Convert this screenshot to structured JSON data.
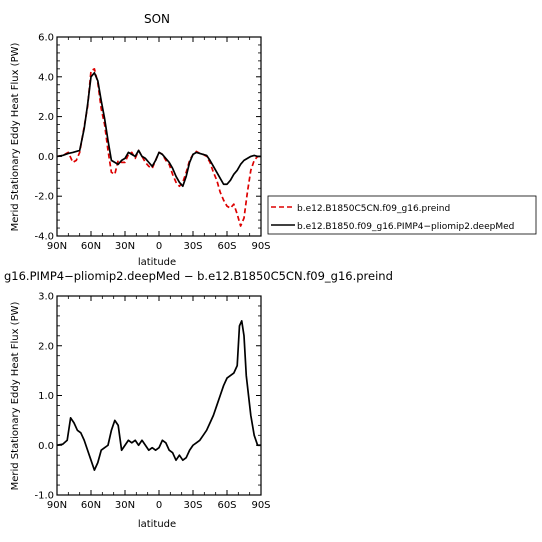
{
  "chart_data": [
    {
      "type": "line",
      "title": "SON",
      "xlabel": "latitude",
      "ylabel": "Merid Stationary Eddy Heat Flux (PW)",
      "x_ticks": [
        "90N",
        "60N",
        "30N",
        "0",
        "30S",
        "60S",
        "90S"
      ],
      "y_ticks": [
        "-4.0",
        "-2.0",
        "0.0",
        "2.0",
        "4.0",
        "6.0"
      ],
      "xlim": [
        90,
        -90
      ],
      "ylim": [
        -4,
        6
      ],
      "x_unit": "latitude (degrees, positive = N)",
      "legend_position": "right",
      "series": [
        {
          "name": "b.e12.B1850C5CN.f09_g16.preind",
          "color": "#dd0000",
          "dash": "dashed",
          "x": [
            90,
            85,
            80,
            76,
            73,
            70,
            66,
            63,
            60,
            57,
            54,
            51,
            48,
            45,
            42,
            39,
            36,
            33,
            30,
            27,
            24,
            21,
            18,
            15,
            12,
            9,
            6,
            3,
            0,
            -3,
            -6,
            -9,
            -12,
            -15,
            -18,
            -21,
            -24,
            -27,
            -30,
            -33,
            -36,
            -39,
            -42,
            -45,
            -48,
            -51,
            -54,
            -57,
            -60,
            -63,
            -66,
            -69,
            -72,
            -75,
            -78,
            -81,
            -84,
            -87,
            -90
          ],
          "y": [
            0.0,
            0.05,
            0.2,
            -0.3,
            -0.2,
            0.2,
            1.5,
            2.5,
            4.3,
            4.4,
            3.7,
            2.4,
            1.6,
            0.3,
            -0.8,
            -0.9,
            -0.2,
            -0.3,
            -0.3,
            0.1,
            0.2,
            -0.1,
            0.3,
            0.0,
            -0.3,
            -0.5,
            -0.6,
            -0.2,
            0.2,
            0.1,
            -0.2,
            -0.4,
            -0.9,
            -1.3,
            -1.5,
            -1.3,
            -0.8,
            -0.2,
            0.1,
            0.25,
            0.15,
            0.1,
            0.0,
            -0.3,
            -0.8,
            -1.2,
            -1.8,
            -2.2,
            -2.5,
            -2.6,
            -2.4,
            -2.9,
            -3.5,
            -3.1,
            -1.8,
            -0.7,
            -0.2,
            0.0,
            0.0
          ]
        },
        {
          "name": "b.e12.B1850.f09_g16.PIMP4-pliomip2.deepMed",
          "color": "#000000",
          "dash": "solid",
          "x": [
            90,
            85,
            80,
            76,
            73,
            70,
            66,
            63,
            60,
            57,
            54,
            51,
            48,
            45,
            42,
            39,
            36,
            33,
            30,
            27,
            24,
            21,
            18,
            15,
            12,
            9,
            6,
            3,
            0,
            -3,
            -6,
            -9,
            -12,
            -15,
            -18,
            -21,
            -24,
            -27,
            -30,
            -33,
            -36,
            -39,
            -42,
            -45,
            -48,
            -51,
            -54,
            -57,
            -60,
            -63,
            -66,
            -69,
            -72,
            -75,
            -78,
            -81,
            -84,
            -87,
            -90
          ],
          "y": [
            0.0,
            0.05,
            0.15,
            0.2,
            0.25,
            0.3,
            1.4,
            2.6,
            4.0,
            4.2,
            3.8,
            2.8,
            1.9,
            0.8,
            -0.2,
            -0.3,
            -0.4,
            -0.2,
            -0.1,
            0.2,
            0.1,
            0.0,
            0.3,
            0.0,
            -0.1,
            -0.3,
            -0.5,
            -0.2,
            0.2,
            0.1,
            -0.1,
            -0.3,
            -0.6,
            -1.0,
            -1.3,
            -1.5,
            -1.0,
            -0.3,
            0.1,
            0.2,
            0.15,
            0.1,
            0.05,
            -0.2,
            -0.5,
            -0.8,
            -1.1,
            -1.4,
            -1.4,
            -1.2,
            -0.9,
            -0.7,
            -0.4,
            -0.2,
            -0.1,
            0.0,
            0.05,
            0.0,
            0.0
          ]
        }
      ]
    },
    {
      "type": "line",
      "title": "g16.PIMP4−pliomip2.deepMed − b.e12.B1850C5CN.f09_g16.preind",
      "xlabel": "latitude",
      "ylabel": "Merid Stationary Eddy Heat Flux (PW)",
      "x_ticks": [
        "90N",
        "60N",
        "30N",
        "0",
        "30S",
        "60S",
        "90S"
      ],
      "y_ticks": [
        "-1.0",
        "0.0",
        "1.0",
        "2.0",
        "3.0"
      ],
      "xlim": [
        90,
        -90
      ],
      "ylim": [
        -1,
        3
      ],
      "x_unit": "latitude (degrees, positive = N)",
      "series": [
        {
          "color": "#000000",
          "dash": "solid",
          "x": [
            90,
            85,
            81,
            78,
            75,
            72,
            69,
            66,
            63,
            60,
            57,
            54,
            51,
            48,
            45,
            42,
            39,
            36,
            33,
            30,
            27,
            24,
            21,
            18,
            15,
            12,
            9,
            6,
            3,
            0,
            -3,
            -6,
            -9,
            -12,
            -15,
            -18,
            -21,
            -24,
            -27,
            -30,
            -33,
            -36,
            -39,
            -42,
            -45,
            -48,
            -51,
            -54,
            -57,
            -60,
            -63,
            -66,
            -69,
            -71,
            -73,
            -75,
            -77,
            -79,
            -81,
            -84,
            -87,
            -90
          ],
          "y": [
            0.0,
            0.02,
            0.1,
            0.55,
            0.45,
            0.3,
            0.25,
            0.1,
            -0.1,
            -0.3,
            -0.5,
            -0.35,
            -0.1,
            -0.05,
            0.0,
            0.3,
            0.5,
            0.4,
            -0.1,
            0.0,
            0.1,
            0.05,
            0.1,
            0.0,
            0.1,
            0.0,
            -0.1,
            -0.05,
            -0.1,
            -0.05,
            0.1,
            0.05,
            -0.1,
            -0.15,
            -0.3,
            -0.2,
            -0.3,
            -0.25,
            -0.1,
            0.0,
            0.05,
            0.1,
            0.2,
            0.3,
            0.45,
            0.6,
            0.8,
            1.0,
            1.2,
            1.35,
            1.4,
            1.45,
            1.6,
            2.4,
            2.5,
            2.2,
            1.4,
            1.0,
            0.6,
            0.2,
            0.0,
            0.0
          ]
        }
      ]
    }
  ],
  "legend": {
    "items": [
      "b.e12.B1850C5CN.f09_g16.preind",
      "b.e12.B1850.f09_g16.PIMP4−pliomip2.deepMed"
    ]
  }
}
